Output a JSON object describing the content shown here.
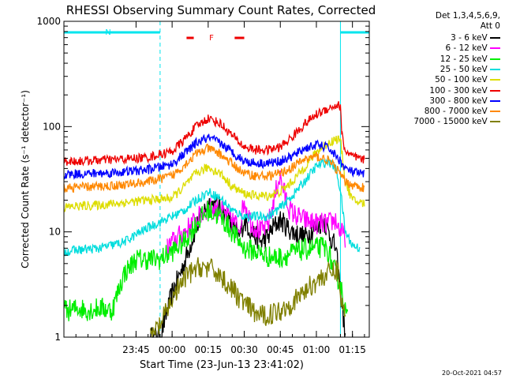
{
  "chart_data": {
    "type": "line",
    "title": "RHESSI Observing Summary Count Rates, Corrected",
    "xlabel": "Start Time (23-Jun-13 23:41:02)",
    "ylabel": "Corrected Count Rate (s⁻¹ detector⁻¹)",
    "yscale": "log",
    "ylim": [
      1,
      1000
    ],
    "xlim_minutes": [
      -45,
      82
    ],
    "x_ticks": [
      {
        "min": -15,
        "label": "23:45"
      },
      {
        "min": 0,
        "label": "00:00"
      },
      {
        "min": 15,
        "label": "00:15"
      },
      {
        "min": 30,
        "label": "00:30"
      },
      {
        "min": 45,
        "label": "00:45"
      },
      {
        "min": 60,
        "label": "01:00"
      },
      {
        "min": 75,
        "label": "01:15"
      }
    ],
    "y_ticks": [
      {
        "v": 1,
        "label": "1"
      },
      {
        "v": 10,
        "label": "10"
      },
      {
        "v": 100,
        "label": "100"
      },
      {
        "v": 1000,
        "label": "1000"
      }
    ],
    "grid": false,
    "legend_header": [
      "Det 1,3,4,5,6,9,",
      "Att 0"
    ],
    "legend_position": "right",
    "annotations": {
      "night_label": "N",
      "flare_label": "F",
      "footer_date": "20-Oct-2021 04:57"
    },
    "shade_colors": {
      "night": "#00e5ee",
      "flare": "#ee0000"
    },
    "series": [
      {
        "name": "3 - 6 keV",
        "color": "#000000",
        "x": [
          -9,
          -5,
          0,
          5,
          10,
          15,
          20,
          25,
          28,
          30,
          33,
          37,
          40,
          42,
          45,
          48,
          50,
          55,
          60,
          63,
          65,
          68,
          70,
          71.5,
          72
        ],
        "values": [
          1,
          1,
          2.6,
          5,
          11,
          19,
          17,
          11,
          9,
          13,
          10,
          8,
          9,
          11,
          13,
          11,
          10,
          9,
          11,
          13,
          10,
          7,
          2.8,
          1.3,
          1
        ]
      },
      {
        "name": "6 - 12 keV",
        "color": "#ff00ff",
        "x": [
          -2,
          0,
          5,
          10,
          15,
          20,
          25,
          28,
          30,
          33,
          37,
          40,
          42,
          44,
          45,
          47,
          49,
          52,
          55,
          60,
          65,
          68,
          70,
          72
        ],
        "values": [
          7,
          8,
          10,
          13,
          17,
          16,
          13,
          11,
          20,
          12,
          10,
          12,
          18,
          30,
          33,
          22,
          16,
          14,
          13,
          12,
          12,
          13,
          10,
          9
        ]
      },
      {
        "name": "12 - 25 keV",
        "color": "#00ee00",
        "x": [
          -45,
          -42,
          -39,
          -35,
          -30,
          -25,
          -20,
          -15,
          -10,
          -5,
          0,
          5,
          10,
          15,
          20,
          25,
          30,
          35,
          40,
          45,
          50,
          55,
          60,
          63,
          65,
          67,
          70,
          72,
          73
        ],
        "values": [
          1.8,
          1.8,
          1.9,
          1.8,
          1.9,
          1.8,
          4,
          5.5,
          5.5,
          5.5,
          6.5,
          8,
          12,
          16,
          14,
          10,
          7,
          6.5,
          5.8,
          5.7,
          6.3,
          6.8,
          7,
          7.2,
          6.5,
          4.5,
          3.2,
          1.8,
          1.5
        ]
      },
      {
        "name": "25 - 50 keV",
        "color": "#00dddd",
        "x": [
          -45,
          -40,
          -30,
          -20,
          -10,
          0,
          5,
          10,
          15,
          20,
          25,
          30,
          35,
          40,
          45,
          50,
          55,
          60,
          65,
          68,
          70,
          72,
          75,
          78
        ],
        "values": [
          6.5,
          6.7,
          7,
          8,
          11,
          14,
          16,
          20,
          24,
          21,
          16,
          14,
          14,
          14,
          17,
          22,
          30,
          42,
          47,
          40,
          25,
          10,
          7.5,
          7
        ]
      },
      {
        "name": "50 - 100 keV",
        "color": "#dddd00",
        "x": [
          -45,
          -40,
          -30,
          -20,
          -10,
          0,
          5,
          10,
          15,
          20,
          25,
          30,
          35,
          40,
          45,
          50,
          55,
          60,
          65,
          68,
          70,
          72,
          75,
          80
        ],
        "values": [
          17,
          17.5,
          18,
          19,
          20,
          21,
          27,
          36,
          41,
          36,
          27,
          23,
          22,
          22,
          24,
          30,
          41,
          57,
          70,
          76,
          75,
          30,
          20,
          18.5
        ]
      },
      {
        "name": "100 - 300 keV",
        "color": "#ee0000",
        "x": [
          -45,
          -40,
          -30,
          -20,
          -10,
          0,
          5,
          10,
          15,
          20,
          25,
          30,
          35,
          40,
          45,
          50,
          55,
          60,
          65,
          69,
          70,
          70.5,
          72,
          75,
          78,
          80
        ],
        "values": [
          47,
          47,
          48,
          49,
          51,
          58,
          75,
          100,
          120,
          107,
          82,
          64,
          60,
          60,
          64,
          80,
          105,
          130,
          150,
          160,
          155,
          88,
          58,
          52,
          49,
          48
        ]
      },
      {
        "name": "300 - 800 keV",
        "color": "#0000ff",
        "x": [
          -45,
          -40,
          -30,
          -20,
          -10,
          0,
          5,
          10,
          15,
          20,
          25,
          30,
          35,
          40,
          45,
          50,
          55,
          60,
          65,
          69,
          70,
          72,
          75,
          80
        ],
        "values": [
          35,
          35.5,
          36,
          37,
          39,
          44,
          55,
          70,
          78,
          70,
          57,
          47,
          45,
          45,
          47,
          52,
          62,
          67,
          63,
          50,
          47,
          40,
          37,
          35
        ]
      },
      {
        "name": "800 - 7000 keV",
        "color": "#ff8800",
        "x": [
          -45,
          -40,
          -30,
          -20,
          -10,
          0,
          5,
          10,
          15,
          20,
          25,
          30,
          35,
          40,
          45,
          50,
          55,
          60,
          65,
          69,
          70,
          72,
          75,
          80
        ],
        "values": [
          26,
          26.5,
          27,
          28,
          30,
          34,
          43,
          55,
          62,
          55,
          44,
          36,
          34,
          34,
          36,
          41,
          49,
          52,
          48,
          38,
          35,
          30,
          28,
          26
        ]
      },
      {
        "name": "7000 - 15000 keV",
        "color": "#808000",
        "x": [
          -9,
          -5,
          -2,
          0,
          3,
          6,
          9,
          12,
          15,
          18,
          21,
          24,
          27,
          30,
          33,
          36,
          39,
          42,
          45,
          48,
          51,
          54,
          57,
          60,
          63,
          66,
          69,
          70,
          72
        ],
        "values": [
          1,
          1.3,
          1.8,
          2.3,
          3,
          3.8,
          4.3,
          4.7,
          4.5,
          4.2,
          3.6,
          3,
          2.5,
          2.1,
          1.8,
          1.6,
          1.6,
          1.7,
          1.8,
          2,
          2.2,
          2.6,
          3,
          3.4,
          3.8,
          4.1,
          4.3,
          2.5,
          1.5
        ]
      }
    ],
    "regions": {
      "night": [
        {
          "from": -45,
          "to": -5
        },
        {
          "from": 70,
          "to": 82
        }
      ],
      "flare_bars": [
        {
          "from": 6,
          "to": 9
        },
        {
          "from": 26,
          "to": 30
        }
      ]
    }
  }
}
